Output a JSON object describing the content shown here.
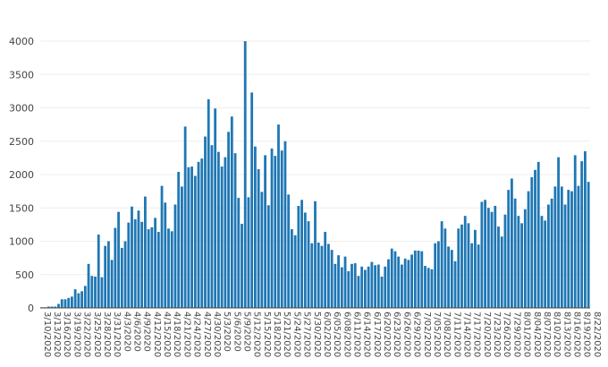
{
  "chart_data": {
    "type": "bar",
    "title": "",
    "xlabel": "",
    "ylabel": "",
    "ylim": [
      0,
      4000
    ],
    "y_ticks": [
      0,
      500,
      1000,
      1500,
      2000,
      2500,
      3000,
      3500,
      4000
    ],
    "grid": true,
    "colors": {
      "bar": "#1f77b4",
      "grid": "#eeeeee",
      "baseline": "#444444"
    },
    "x_start_date": "2020-03-10",
    "x_tick_labels": [
      "3/10/2020",
      "3/13/2020",
      "3/16/2020",
      "3/19/2020",
      "3/22/2020",
      "3/25/2020",
      "3/28/2020",
      "3/31/2020",
      "4/3/2020",
      "4/6/2020",
      "4/9/2020",
      "4/12/2020",
      "4/15/2020",
      "4/18/2020",
      "4/21/2020",
      "4/24/2020",
      "4/27/2020",
      "4/30/2020",
      "5/3/2020",
      "5/6/2020",
      "5/9/2020",
      "5/12/2020",
      "5/15/2020",
      "5/18/2020",
      "5/21/2020",
      "5/24/2020",
      "5/27/2020",
      "5/30/2020",
      "6/02/2020",
      "6/05/2020",
      "6/08/2020",
      "6/11/2020",
      "6/14/2020",
      "6/17/2020",
      "6/20/2020",
      "6/23/2020",
      "6/26/2020",
      "6/29/2020",
      "7/02/2020",
      "7/05/2020",
      "7/08/2020",
      "7/11/2020",
      "7/14/2020",
      "7/17/2020",
      "7/20/2020",
      "7/23/2020",
      "7/26/2020",
      "7/29/2020",
      "8/01/2020",
      "8/04/2020",
      "8/07/2020",
      "8/10/2020",
      "8/13/2020",
      "8/16/2020",
      "8/19/2020",
      "8/22/2020"
    ],
    "values": [
      10,
      10,
      20,
      20,
      20,
      60,
      130,
      130,
      150,
      170,
      280,
      220,
      250,
      330,
      660,
      480,
      470,
      1100,
      460,
      930,
      1000,
      720,
      1200,
      1440,
      900,
      1000,
      1280,
      1520,
      1330,
      1460,
      1290,
      1670,
      1180,
      1210,
      1350,
      1140,
      1830,
      1580,
      1190,
      1150,
      1550,
      2040,
      1820,
      2720,
      2110,
      2120,
      1980,
      2190,
      2240,
      2570,
      3130,
      2440,
      2990,
      2340,
      2120,
      2260,
      2640,
      2870,
      2320,
      1650,
      1260,
      4000,
      1660,
      3230,
      2420,
      2080,
      1740,
      2290,
      1540,
      2390,
      2280,
      2750,
      2360,
      2500,
      1700,
      1180,
      1090,
      1530,
      1620,
      1430,
      1300,
      970,
      1600,
      980,
      930,
      1140,
      960,
      870,
      660,
      790,
      610,
      770,
      550,
      660,
      670,
      480,
      620,
      570,
      620,
      690,
      640,
      650,
      470,
      620,
      730,
      890,
      850,
      770,
      650,
      740,
      720,
      800,
      860,
      860,
      850,
      630,
      600,
      580,
      970,
      1000,
      1300,
      1190,
      920,
      870,
      700,
      1190,
      1250,
      1380,
      1270,
      970,
      1170,
      950,
      1590,
      1620,
      1500,
      1440,
      1530,
      1220,
      1070,
      1400,
      1770,
      1940,
      1640,
      1380,
      1270,
      1480,
      1750,
      1960,
      2070,
      2190,
      1380,
      1310,
      1550,
      1640,
      1820,
      2260,
      1820,
      1550,
      1770,
      1750,
      2290,
      1830,
      2200,
      2350,
      1890
    ]
  }
}
